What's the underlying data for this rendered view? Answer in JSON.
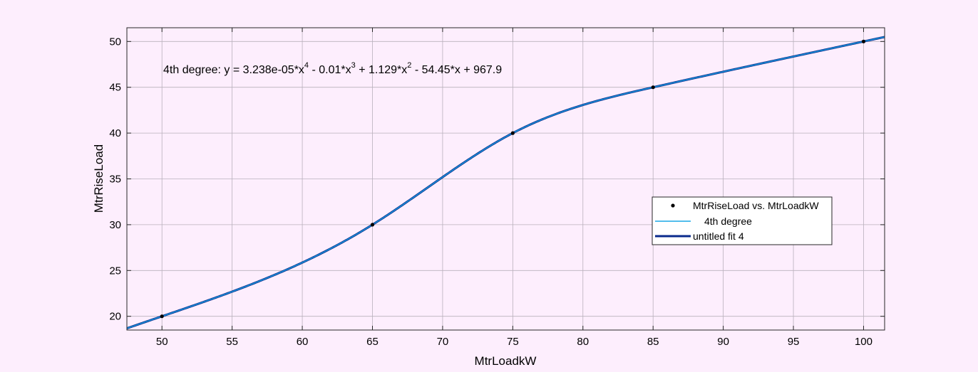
{
  "chart_data": {
    "type": "line",
    "xlabel": "MtrLoadkW",
    "ylabel": "MtrRiseLoad",
    "xlim": [
      47.5,
      101.5
    ],
    "ylim": [
      18.5,
      51.5
    ],
    "xticks": [
      50,
      55,
      60,
      65,
      70,
      75,
      80,
      85,
      90,
      95,
      100
    ],
    "yticks": [
      20,
      25,
      30,
      35,
      40,
      45,
      50
    ],
    "grid": true,
    "annotation": {
      "prefix": "4th degree:  y = 3.238e-05*x",
      "exp1": "4",
      "part2": " - 0.01*x",
      "exp2": "3",
      "part3": " + 1.129*x",
      "exp3": "2",
      "part4": " - 54.45*x + 967.9"
    },
    "points": {
      "name": "MtrRiseLoad vs. MtrLoadkW",
      "x": [
        50,
        65,
        75,
        85,
        100
      ],
      "y": [
        20,
        30,
        40,
        45,
        50
      ]
    },
    "fit": {
      "name": "4th degree",
      "coefficients": [
        3.238e-05,
        -0.01,
        1.129,
        -54.45,
        967.9
      ]
    },
    "legend": {
      "placement": "right",
      "entries": [
        "MtrRiseLoad vs. MtrLoadkW",
        "4th degree",
        "untitled fit 4"
      ]
    },
    "colors": {
      "background": "#fdeefd",
      "plot_area": "#fdeefd",
      "axis": "#262626",
      "grid": "#b9b0bc",
      "points": "#000000",
      "fit_line": "#1aa7e6",
      "untitled_fit": "#0a2a8c"
    }
  }
}
